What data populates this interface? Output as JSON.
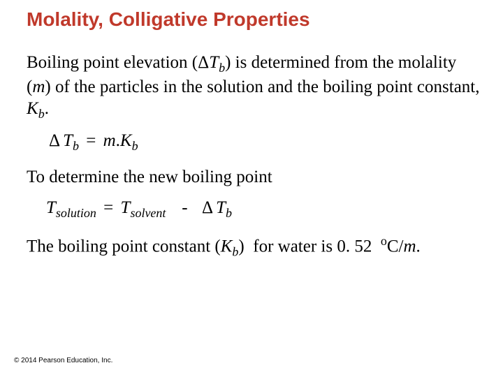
{
  "title": "Molality, Colligative Properties",
  "p1_a": "Boiling point elevation (Δ",
  "p1_t": "T",
  "p1_bsub": "b",
  "p1_b": ") is determined from the molality (",
  "p1_m": "m",
  "p1_c": ") of the particles in the solution and the boiling point constant, ",
  "p1_k": "K",
  "p1_ksub": "b",
  "p1_end": ".",
  "eq1_dtb_d": "Δ",
  "eq1_dtb_t": "T",
  "eq1_dtb_sub": "b",
  "eq1_eq": "=",
  "eq1_m": "m",
  "eq1_dot": ".",
  "eq1_k": "K",
  "eq1_ksub": "b",
  "p2": "To determine the new boiling point",
  "eq2_t1": "T",
  "eq2_sol": "solution",
  "eq2_eq": "=",
  "eq2_t2": "T",
  "eq2_solv": "solvent",
  "eq2_minus": "-",
  "eq2_d": "Δ",
  "eq2_t3": "T",
  "eq2_bsub": "b",
  "p3_a": "The boiling point constant (",
  "p3_k": "K",
  "p3_ksub": "b",
  "p3_b": ")  for water is 0. 52  ",
  "p3_sup": "o",
  "p3_c": "C/",
  "p3_m": "m",
  "p3_end": ".",
  "copyright": "© 2014 Pearson Education, Inc.",
  "colors": {
    "title": "#c0392b",
    "text": "#000000",
    "background": "#ffffff"
  },
  "fontsizes": {
    "title": 28,
    "body": 25,
    "equation": 25,
    "copyright": 10
  }
}
